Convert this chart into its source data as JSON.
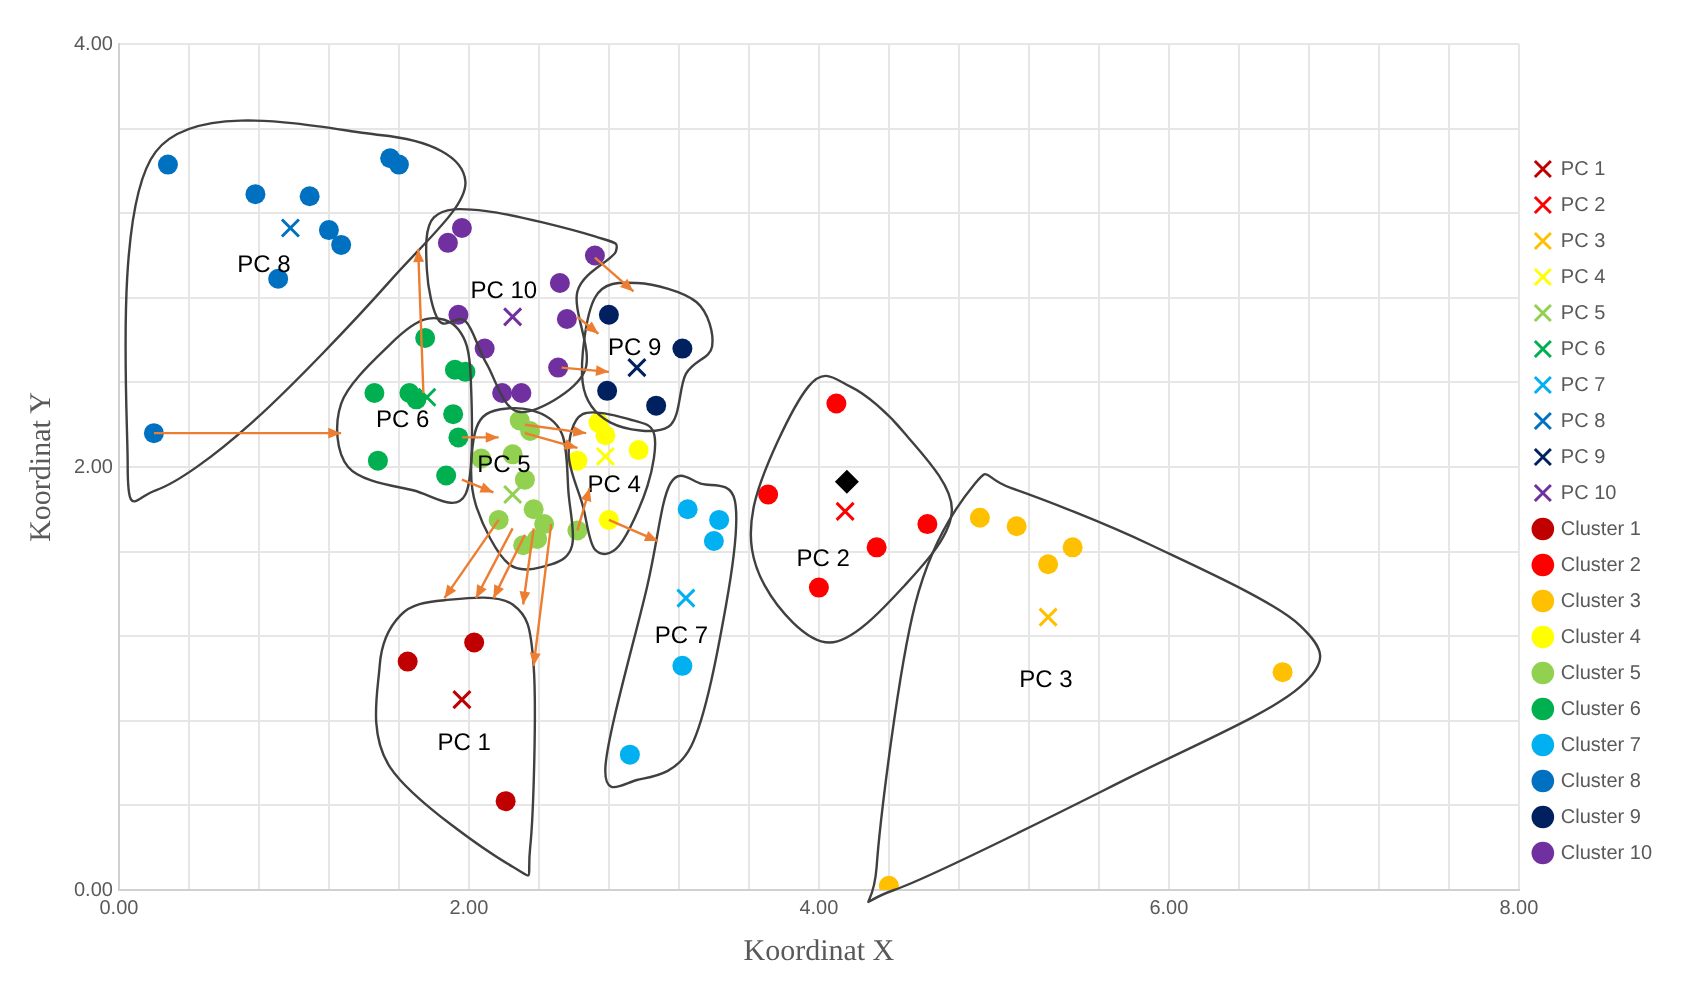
{
  "chart_data": {
    "type": "scatter",
    "xlabel": "Koordinat X",
    "ylabel": "Koordinat Y",
    "xlim": [
      0,
      8
    ],
    "ylim": [
      0,
      4
    ],
    "xticks": [
      {
        "value": 0,
        "label": "0.00"
      },
      {
        "value": 0.4,
        "label": null
      },
      {
        "value": 0.8,
        "label": null
      },
      {
        "value": 1.2,
        "label": null
      },
      {
        "value": 1.6,
        "label": null
      },
      {
        "value": 2,
        "label": "2.00"
      },
      {
        "value": 2.4,
        "label": null
      },
      {
        "value": 2.8,
        "label": null
      },
      {
        "value": 3.2,
        "label": null
      },
      {
        "value": 3.6,
        "label": null
      },
      {
        "value": 4,
        "label": "4.00"
      },
      {
        "value": 4.4,
        "label": null
      },
      {
        "value": 4.8,
        "label": null
      },
      {
        "value": 5.2,
        "label": null
      },
      {
        "value": 5.6,
        "label": null
      },
      {
        "value": 6,
        "label": "6.00"
      },
      {
        "value": 6.4,
        "label": null
      },
      {
        "value": 6.8,
        "label": null
      },
      {
        "value": 7.2,
        "label": null
      },
      {
        "value": 7.6,
        "label": null
      },
      {
        "value": 8,
        "label": "8.00"
      }
    ],
    "yticks": [
      {
        "value": 0,
        "label": "0.00"
      },
      {
        "value": 0.4,
        "label": null
      },
      {
        "value": 0.8,
        "label": null
      },
      {
        "value": 1.2,
        "label": null
      },
      {
        "value": 1.6,
        "label": null
      },
      {
        "value": 2,
        "label": "2.00"
      },
      {
        "value": 2.4,
        "label": null
      },
      {
        "value": 2.8,
        "label": null
      },
      {
        "value": 3.2,
        "label": null
      },
      {
        "value": 3.6,
        "label": null
      },
      {
        "value": 4,
        "label": "4.00"
      }
    ],
    "grid": true,
    "legend": "right",
    "series": [
      {
        "name": "PC 1",
        "color": "#c00000",
        "marker": "cross",
        "x": [
          1.96
        ],
        "values": [
          0.9
        ]
      },
      {
        "name": "PC 2",
        "color": "#ff0000",
        "marker": "cross",
        "x": [
          4.15
        ],
        "values": [
          1.79
        ]
      },
      {
        "name": "PC 3",
        "color": "#ffc000",
        "marker": "cross",
        "x": [
          5.31
        ],
        "values": [
          1.29
        ]
      },
      {
        "name": "PC 4",
        "color": "#ffff00",
        "marker": "cross",
        "x": [
          2.78
        ],
        "values": [
          2.05
        ]
      },
      {
        "name": "PC 5",
        "color": "#92d050",
        "marker": "cross",
        "x": [
          2.25
        ],
        "values": [
          1.87
        ]
      },
      {
        "name": "PC 6",
        "color": "#00b050",
        "marker": "cross",
        "x": [
          1.76
        ],
        "values": [
          2.33
        ]
      },
      {
        "name": "PC 7",
        "color": "#00b0f0",
        "marker": "cross",
        "x": [
          3.24
        ],
        "values": [
          1.38
        ]
      },
      {
        "name": "PC 8",
        "color": "#0070c0",
        "marker": "cross",
        "x": [
          0.98
        ],
        "values": [
          3.13
        ]
      },
      {
        "name": "PC 9",
        "color": "#002060",
        "marker": "cross",
        "x": [
          2.96
        ],
        "values": [
          2.47
        ]
      },
      {
        "name": "PC 10",
        "color": "#7030a0",
        "marker": "cross",
        "x": [
          2.25
        ],
        "values": [
          2.71
        ]
      },
      {
        "name": "Cluster 1",
        "color": "#c00000",
        "marker": "circle",
        "x": [
          1.65,
          2.03,
          2.21
        ],
        "values": [
          1.08,
          1.17,
          0.42
        ]
      },
      {
        "name": "Cluster 2",
        "color": "#ff0000",
        "marker": "circle",
        "x": [
          4.1,
          3.71,
          4.33,
          4.62,
          4.0
        ],
        "values": [
          2.3,
          1.87,
          1.62,
          1.73,
          1.43
        ]
      },
      {
        "name": "Cluster 3",
        "color": "#ffc000",
        "marker": "circle",
        "x": [
          4.92,
          5.13,
          5.45,
          5.31,
          6.65,
          4.4
        ],
        "values": [
          1.76,
          1.72,
          1.62,
          1.54,
          1.03,
          0.02
        ]
      },
      {
        "name": "Cluster 4",
        "color": "#ffff00",
        "marker": "circle",
        "x": [
          2.74,
          2.78,
          2.97,
          2.62,
          2.8
        ],
        "values": [
          2.21,
          2.15,
          2.08,
          2.03,
          1.75
        ]
      },
      {
        "name": "Cluster 5",
        "color": "#92d050",
        "marker": "circle",
        "x": [
          2.29,
          2.35,
          2.25,
          2.07,
          2.32,
          2.37,
          2.17,
          2.43,
          2.31,
          2.39,
          2.62
        ],
        "values": [
          2.22,
          2.17,
          2.06,
          2.04,
          1.94,
          1.8,
          1.75,
          1.73,
          1.63,
          1.66,
          1.7
        ]
      },
      {
        "name": "Cluster 6",
        "color": "#00b050",
        "marker": "circle",
        "x": [
          1.75,
          1.92,
          1.98,
          1.46,
          1.66,
          1.7,
          1.91,
          1.94,
          1.48,
          1.87
        ],
        "values": [
          2.61,
          2.46,
          2.45,
          2.35,
          2.35,
          2.32,
          2.25,
          2.14,
          2.03,
          1.96
        ]
      },
      {
        "name": "Cluster 7",
        "color": "#00b0f0",
        "marker": "circle",
        "x": [
          3.25,
          3.43,
          3.4,
          3.22,
          2.92
        ],
        "values": [
          1.8,
          1.75,
          1.65,
          1.06,
          0.64
        ]
      },
      {
        "name": "Cluster 8",
        "color": "#0070c0",
        "marker": "circle",
        "x": [
          0.28,
          1.55,
          1.6,
          0.78,
          1.09,
          1.2,
          1.27,
          0.91,
          0.2
        ],
        "values": [
          3.43,
          3.46,
          3.43,
          3.29,
          3.28,
          3.12,
          3.05,
          2.89,
          2.16
        ]
      },
      {
        "name": "Cluster 9",
        "color": "#002060",
        "marker": "circle",
        "x": [
          2.8,
          3.22,
          2.79,
          3.07
        ],
        "values": [
          2.72,
          2.56,
          2.36,
          2.29
        ]
      },
      {
        "name": "Cluster 10",
        "color": "#7030a0",
        "marker": "circle",
        "x": [
          1.96,
          1.88,
          2.72,
          2.52,
          2.56,
          1.94,
          2.09,
          2.51,
          2.19,
          2.3
        ],
        "values": [
          3.13,
          3.06,
          3.0,
          2.87,
          2.7,
          2.72,
          2.56,
          2.47,
          2.35,
          2.35
        ]
      },
      {
        "color": "#000000",
        "marker": "diamond",
        "x": [
          4.16
        ],
        "values": [
          1.93
        ]
      }
    ],
    "annotations": [
      {
        "text": "PC 1",
        "x": 1.96,
        "y": 0.9
      },
      {
        "text": "PC 2",
        "x": 4.15,
        "y": 1.79
      },
      {
        "text": "PC 3",
        "x": 5.31,
        "y": 1.29
      },
      {
        "text": "PC 4",
        "x": 2.78,
        "y": 2.05
      },
      {
        "text": "PC 5",
        "x": 2.25,
        "y": 1.87
      },
      {
        "text": "PC 6",
        "x": 1.76,
        "y": 2.33
      },
      {
        "text": "PC 7",
        "x": 3.24,
        "y": 1.38
      },
      {
        "text": "PC 8",
        "x": 0.98,
        "y": 3.13
      },
      {
        "text": "PC 9",
        "x": 2.96,
        "y": 2.47
      },
      {
        "text": "PC 10",
        "x": 2.25,
        "y": 2.71
      }
    ]
  }
}
